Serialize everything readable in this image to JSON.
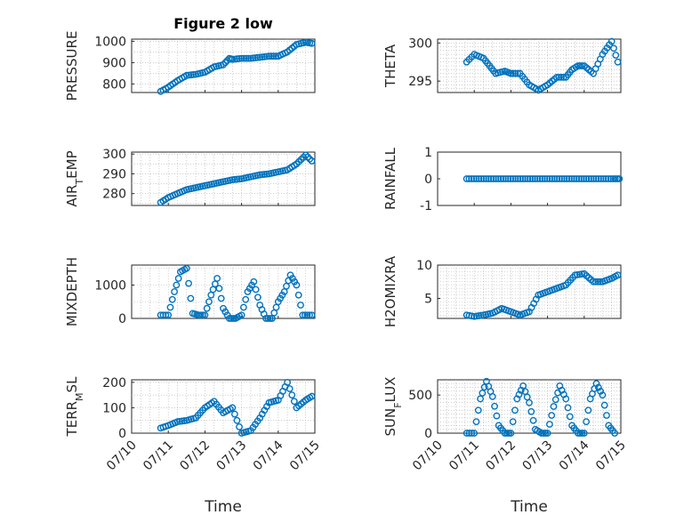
{
  "figure_title": "Figure 2 low",
  "colors": {
    "marker": "#0072BD",
    "axis": "#262626"
  },
  "chart_data": [
    {
      "type": "scatter",
      "title": "Figure 2 low",
      "ylabel": "PRESSURE",
      "ylim": [
        760,
        1010
      ],
      "yticks": [
        "800",
        "900",
        "1000"
      ],
      "ytick_values": [
        800,
        900,
        1000
      ],
      "xlim": [
        "07/10",
        "07/15"
      ],
      "xticks": [
        "07/10",
        "07/11",
        "07/12",
        "07/13",
        "07/14",
        "07/15"
      ],
      "show_xticks": false,
      "grid": true,
      "x": [
        "07/10 19:00",
        "07/11 00:00",
        "07/11 06:00",
        "07/11 12:00",
        "07/11 18:00",
        "07/12 00:00",
        "07/12 06:00",
        "07/12 12:00",
        "07/12 16:00",
        "07/12 18:00",
        "07/13 00:00",
        "07/13 06:00",
        "07/13 12:00",
        "07/13 18:00",
        "07/14 00:00",
        "07/14 06:00",
        "07/14 12:00",
        "07/14 18:00",
        "07/14 22:00"
      ],
      "y": [
        765,
        785,
        815,
        840,
        845,
        855,
        880,
        890,
        920,
        915,
        920,
        920,
        925,
        930,
        930,
        950,
        985,
        995,
        990
      ]
    },
    {
      "type": "scatter",
      "ylabel": "THETA",
      "ylim": [
        293.5,
        300.5
      ],
      "yticks": [
        "295",
        "300"
      ],
      "ytick_values": [
        295,
        300
      ],
      "xlim": [
        "07/10",
        "07/15"
      ],
      "xticks": [
        "07/10",
        "07/11",
        "07/12",
        "07/13",
        "07/14",
        "07/15"
      ],
      "show_xticks": false,
      "grid": true,
      "x": [
        "07/10 19:00",
        "07/11 00:00",
        "07/11 06:00",
        "07/11 10:00",
        "07/11 14:00",
        "07/11 20:00",
        "07/12 00:00",
        "07/12 06:00",
        "07/12 12:00",
        "07/12 18:00",
        "07/13 00:00",
        "07/13 06:00",
        "07/13 12:00",
        "07/13 16:00",
        "07/13 20:00",
        "07/14 00:00",
        "07/14 06:00",
        "07/14 12:00",
        "07/14 18:00",
        "07/14 22:00"
      ],
      "y": [
        297.5,
        298.5,
        298.0,
        297.0,
        296.0,
        296.3,
        296.0,
        296.0,
        294.5,
        293.8,
        294.5,
        295.5,
        295.5,
        296.5,
        297.0,
        297.0,
        296.0,
        298.5,
        300.2,
        297.5
      ]
    },
    {
      "type": "scatter",
      "ylabel": "AIR_TEMP",
      "ylim": [
        274,
        301
      ],
      "yticks": [
        "280",
        "290",
        "300"
      ],
      "ytick_values": [
        280,
        290,
        300
      ],
      "xlim": [
        "07/10",
        "07/15"
      ],
      "xticks": [
        "07/10",
        "07/11",
        "07/12",
        "07/13",
        "07/14",
        "07/15"
      ],
      "show_xticks": false,
      "grid": true,
      "x": [
        "07/10 19:00",
        "07/11 00:00",
        "07/11 06:00",
        "07/11 12:00",
        "07/11 18:00",
        "07/12 00:00",
        "07/12 06:00",
        "07/12 12:00",
        "07/12 18:00",
        "07/13 00:00",
        "07/13 06:00",
        "07/13 12:00",
        "07/13 18:00",
        "07/14 00:00",
        "07/14 06:00",
        "07/14 12:00",
        "07/14 18:00",
        "07/14 22:00"
      ],
      "y": [
        275.5,
        278,
        280,
        282,
        283,
        284,
        285,
        286,
        287,
        287.5,
        288.5,
        289.5,
        290,
        291,
        292,
        295,
        299.5,
        296.5
      ]
    },
    {
      "type": "scatter",
      "ylabel": "RAINFALL",
      "ylim": [
        -1,
        1
      ],
      "yticks": [
        "-1",
        "0",
        "1"
      ],
      "ytick_values": [
        -1,
        0,
        1
      ],
      "xlim": [
        "07/10",
        "07/15"
      ],
      "xticks": [
        "07/10",
        "07/11",
        "07/12",
        "07/13",
        "07/14",
        "07/15"
      ],
      "show_xticks": false,
      "grid": false,
      "x": [
        "07/10 19:00",
        "07/11 03:00",
        "07/11 11:00",
        "07/11 19:00",
        "07/12 03:00",
        "07/12 11:00",
        "07/12 19:00",
        "07/13 03:00",
        "07/13 11:00",
        "07/13 19:00",
        "07/14 03:00",
        "07/14 11:00",
        "07/14 19:00",
        "07/14 23:00"
      ],
      "y": [
        0,
        0,
        0,
        0,
        0,
        0,
        0,
        0,
        0,
        0,
        0,
        0,
        0,
        0
      ]
    },
    {
      "type": "scatter",
      "ylabel": "MIXDEPTH",
      "ylim": [
        0,
        1600
      ],
      "yticks": [
        "0",
        "1000"
      ],
      "ytick_values": [
        0,
        1000
      ],
      "xlim": [
        "07/10",
        "07/15"
      ],
      "xticks": [
        "07/10",
        "07/11",
        "07/12",
        "07/13",
        "07/14",
        "07/15"
      ],
      "show_xticks": false,
      "grid": true,
      "x": [
        "07/10 19:00",
        "07/11 00:00",
        "07/11 04:00",
        "07/11 08:00",
        "07/11 12:00",
        "07/11 16:00",
        "07/11 20:00",
        "07/12 00:00",
        "07/12 04:00",
        "07/12 08:00",
        "07/12 12:00",
        "07/12 16:00",
        "07/12 20:00",
        "07/13 00:00",
        "07/13 04:00",
        "07/13 08:00",
        "07/13 12:00",
        "07/13 16:00",
        "07/13 20:00",
        "07/14 00:00",
        "07/14 04:00",
        "07/14 08:00",
        "07/14 12:00",
        "07/14 16:00",
        "07/14 22:00"
      ],
      "y": [
        100,
        100,
        800,
        1400,
        1500,
        150,
        100,
        100,
        700,
        1200,
        300,
        0,
        0,
        100,
        800,
        1100,
        400,
        0,
        0,
        500,
        800,
        1300,
        1000,
        100,
        100
      ]
    },
    {
      "type": "scatter",
      "ylabel": "H2OMIXRA",
      "ylim": [
        2,
        10
      ],
      "yticks": [
        "5",
        "10"
      ],
      "ytick_values": [
        5,
        10
      ],
      "xlim": [
        "07/10",
        "07/15"
      ],
      "xticks": [
        "07/10",
        "07/11",
        "07/12",
        "07/13",
        "07/14",
        "07/15"
      ],
      "show_xticks": false,
      "grid": true,
      "x": [
        "07/10 19:00",
        "07/11 00:00",
        "07/11 06:00",
        "07/11 12:00",
        "07/11 18:00",
        "07/12 00:00",
        "07/12 06:00",
        "07/12 12:00",
        "07/12 18:00",
        "07/13 00:00",
        "07/13 06:00",
        "07/13 12:00",
        "07/13 18:00",
        "07/14 00:00",
        "07/14 06:00",
        "07/14 12:00",
        "07/14 18:00",
        "07/14 22:00"
      ],
      "y": [
        2.5,
        2.3,
        2.5,
        2.8,
        3.5,
        3.0,
        2.5,
        3.0,
        5.5,
        6.0,
        6.5,
        7.0,
        8.5,
        8.7,
        7.5,
        7.5,
        8.0,
        8.5
      ]
    },
    {
      "type": "scatter",
      "ylabel": "TERR_MSL",
      "ylim": [
        0,
        210
      ],
      "yticks": [
        "0",
        "100",
        "200"
      ],
      "ytick_values": [
        0,
        100,
        200
      ],
      "xlim": [
        "07/10",
        "07/15"
      ],
      "xticks": [
        "07/10",
        "07/11",
        "07/12",
        "07/13",
        "07/14",
        "07/15"
      ],
      "show_xticks": true,
      "xlabel": "Time",
      "grid": true,
      "x": [
        "07/10 19:00",
        "07/11 00:00",
        "07/11 06:00",
        "07/11 12:00",
        "07/11 18:00",
        "07/12 00:00",
        "07/12 06:00",
        "07/12 12:00",
        "07/12 18:00",
        "07/13 00:00",
        "07/13 06:00",
        "07/13 12:00",
        "07/13 18:00",
        "07/14 00:00",
        "07/14 06:00",
        "07/14 12:00",
        "07/14 18:00",
        "07/14 22:00"
      ],
      "y": [
        20,
        30,
        45,
        50,
        60,
        100,
        125,
        80,
        100,
        0,
        10,
        60,
        120,
        130,
        200,
        100,
        130,
        145
      ]
    },
    {
      "type": "scatter",
      "ylabel": "SUN_FLUX",
      "ylim": [
        0,
        700
      ],
      "yticks": [
        "0",
        "500"
      ],
      "ytick_values": [
        0,
        500
      ],
      "xlim": [
        "07/10",
        "07/15"
      ],
      "xticks": [
        "07/10",
        "07/11",
        "07/12",
        "07/13",
        "07/14",
        "07/15"
      ],
      "show_xticks": true,
      "xlabel": "Time",
      "grid": true,
      "x": [
        "07/10 19:00",
        "07/11 00:00",
        "07/11 04:00",
        "07/11 08:00",
        "07/11 12:00",
        "07/11 16:00",
        "07/11 20:00",
        "07/12 00:00",
        "07/12 04:00",
        "07/12 08:00",
        "07/12 12:00",
        "07/12 16:00",
        "07/12 20:00",
        "07/13 00:00",
        "07/13 04:00",
        "07/13 08:00",
        "07/13 12:00",
        "07/13 16:00",
        "07/13 20:00",
        "07/14 00:00",
        "07/14 04:00",
        "07/14 08:00",
        "07/14 12:00",
        "07/14 16:00",
        "07/14 20:00"
      ],
      "y": [
        0,
        0,
        450,
        680,
        480,
        100,
        0,
        0,
        450,
        620,
        400,
        50,
        0,
        0,
        350,
        620,
        450,
        100,
        0,
        0,
        450,
        650,
        500,
        100,
        0
      ]
    }
  ]
}
